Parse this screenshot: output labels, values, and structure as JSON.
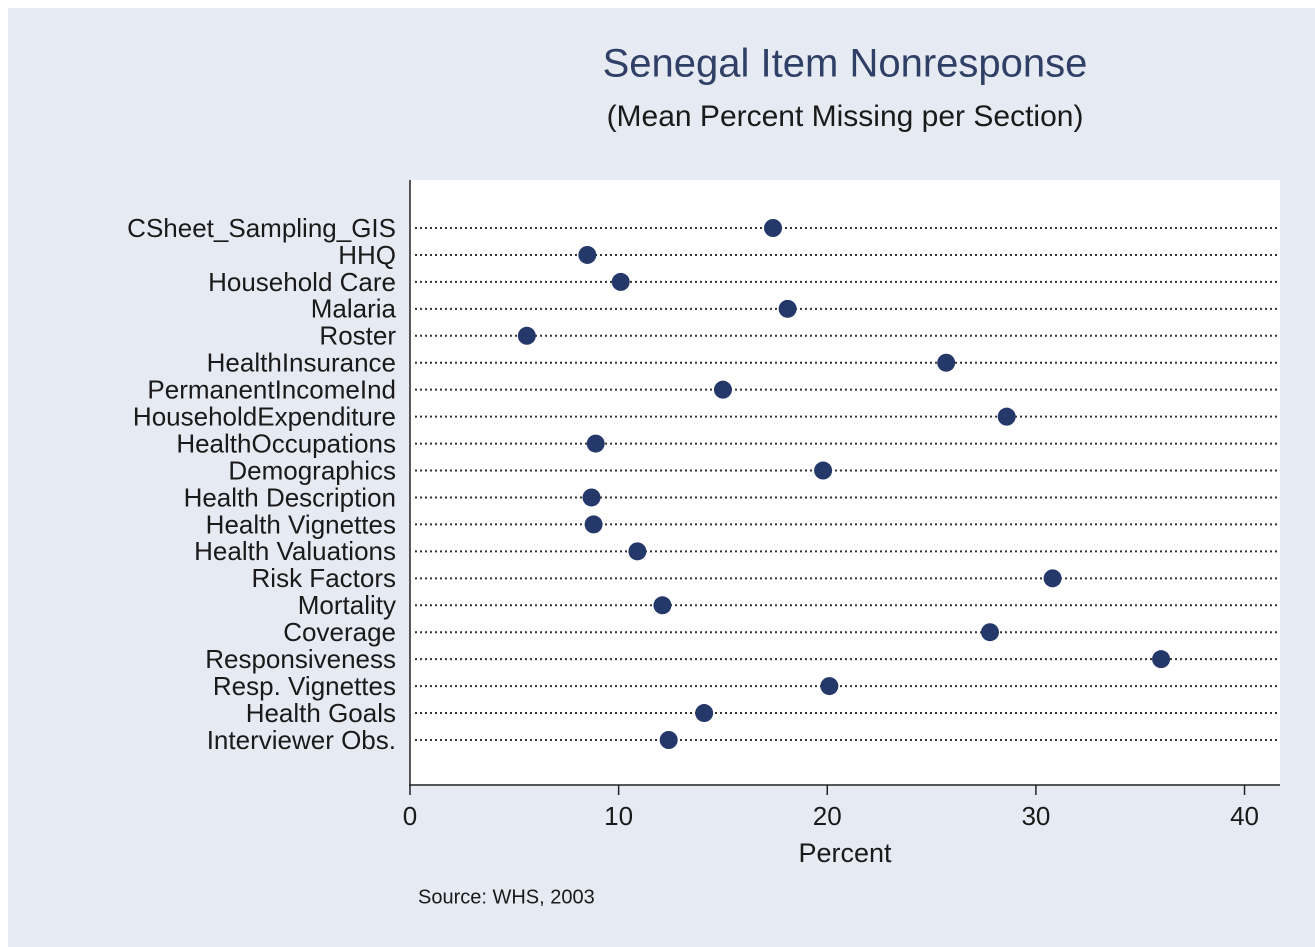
{
  "chart_data": {
    "type": "dot",
    "title": "Senegal Item Nonresponse",
    "subtitle": "(Mean Percent Missing per Section)",
    "x_label": "Percent",
    "note": "Source:  WHS, 2003",
    "categories": [
      "CSheet_Sampling_GIS",
      "HHQ",
      "Household Care",
      "Malaria",
      "Roster",
      "HealthInsurance",
      "PermanentIncomeInd",
      "HouseholdExpenditure",
      "HealthOccupations",
      "Demographics",
      "Health Description",
      "Health Vignettes",
      "Health Valuations",
      "Risk Factors",
      "Mortality",
      "Coverage",
      "Responsiveness",
      "Resp. Vignettes",
      "Health Goals",
      "Interviewer Obs."
    ],
    "values": [
      17.4,
      8.5,
      10.1,
      18.1,
      5.6,
      25.7,
      15.0,
      28.6,
      8.9,
      19.8,
      8.7,
      8.8,
      10.9,
      30.8,
      12.1,
      27.8,
      36.0,
      20.1,
      14.1,
      12.4
    ],
    "color": "#25386a",
    "xlim": [
      0,
      41.7
    ],
    "xticks": [
      0,
      10,
      20,
      30,
      40
    ]
  }
}
